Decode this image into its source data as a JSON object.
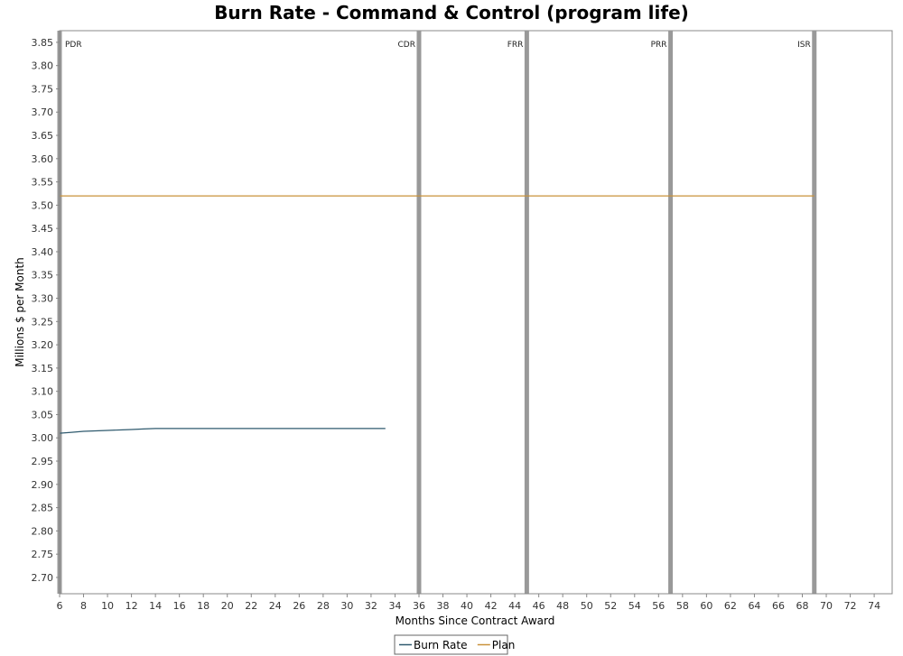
{
  "chart_data": {
    "type": "line",
    "title": "Burn Rate - Command & Control (program life)",
    "xlabel": "Months Since Contract Award",
    "ylabel": "Millions $ per Month",
    "xlim": [
      6,
      75.5
    ],
    "ylim": [
      2.665,
      3.875
    ],
    "x_ticks": [
      6,
      8,
      10,
      12,
      14,
      16,
      18,
      20,
      22,
      24,
      26,
      28,
      30,
      32,
      34,
      36,
      38,
      40,
      42,
      44,
      46,
      48,
      50,
      52,
      54,
      56,
      58,
      60,
      62,
      64,
      66,
      68,
      70,
      72,
      74
    ],
    "y_ticks": [
      "2.70",
      "2.75",
      "2.80",
      "2.85",
      "2.90",
      "2.95",
      "3.00",
      "3.05",
      "3.10",
      "3.15",
      "3.20",
      "3.25",
      "3.30",
      "3.35",
      "3.40",
      "3.45",
      "3.50",
      "3.55",
      "3.60",
      "3.65",
      "3.70",
      "3.75",
      "3.80",
      "3.85"
    ],
    "grid": false,
    "legend_position": "bottom",
    "series": [
      {
        "name": "Burn Rate",
        "color": "#2f5a6e",
        "x": [
          6,
          7,
          8,
          9,
          10,
          11,
          12,
          13,
          14,
          15,
          16,
          17,
          18,
          19,
          20,
          21,
          22,
          23,
          24,
          25,
          26,
          27,
          28,
          29,
          30,
          31,
          32,
          33.2
        ],
        "y": [
          3.01,
          3.012,
          3.014,
          3.015,
          3.016,
          3.017,
          3.018,
          3.019,
          3.02,
          3.02,
          3.02,
          3.02,
          3.02,
          3.02,
          3.02,
          3.02,
          3.02,
          3.02,
          3.02,
          3.02,
          3.02,
          3.02,
          3.02,
          3.02,
          3.02,
          3.02,
          3.02,
          3.02
        ]
      },
      {
        "name": "Plan",
        "color": "#c8923a",
        "x": [
          6,
          69
        ],
        "y": [
          3.52,
          3.52
        ]
      }
    ],
    "markers": [
      {
        "label": "PDR",
        "x": 6
      },
      {
        "label": "CDR",
        "x": 36
      },
      {
        "label": "FRR",
        "x": 45
      },
      {
        "label": "PRR",
        "x": 57
      },
      {
        "label": "ISR",
        "x": 69
      }
    ]
  }
}
